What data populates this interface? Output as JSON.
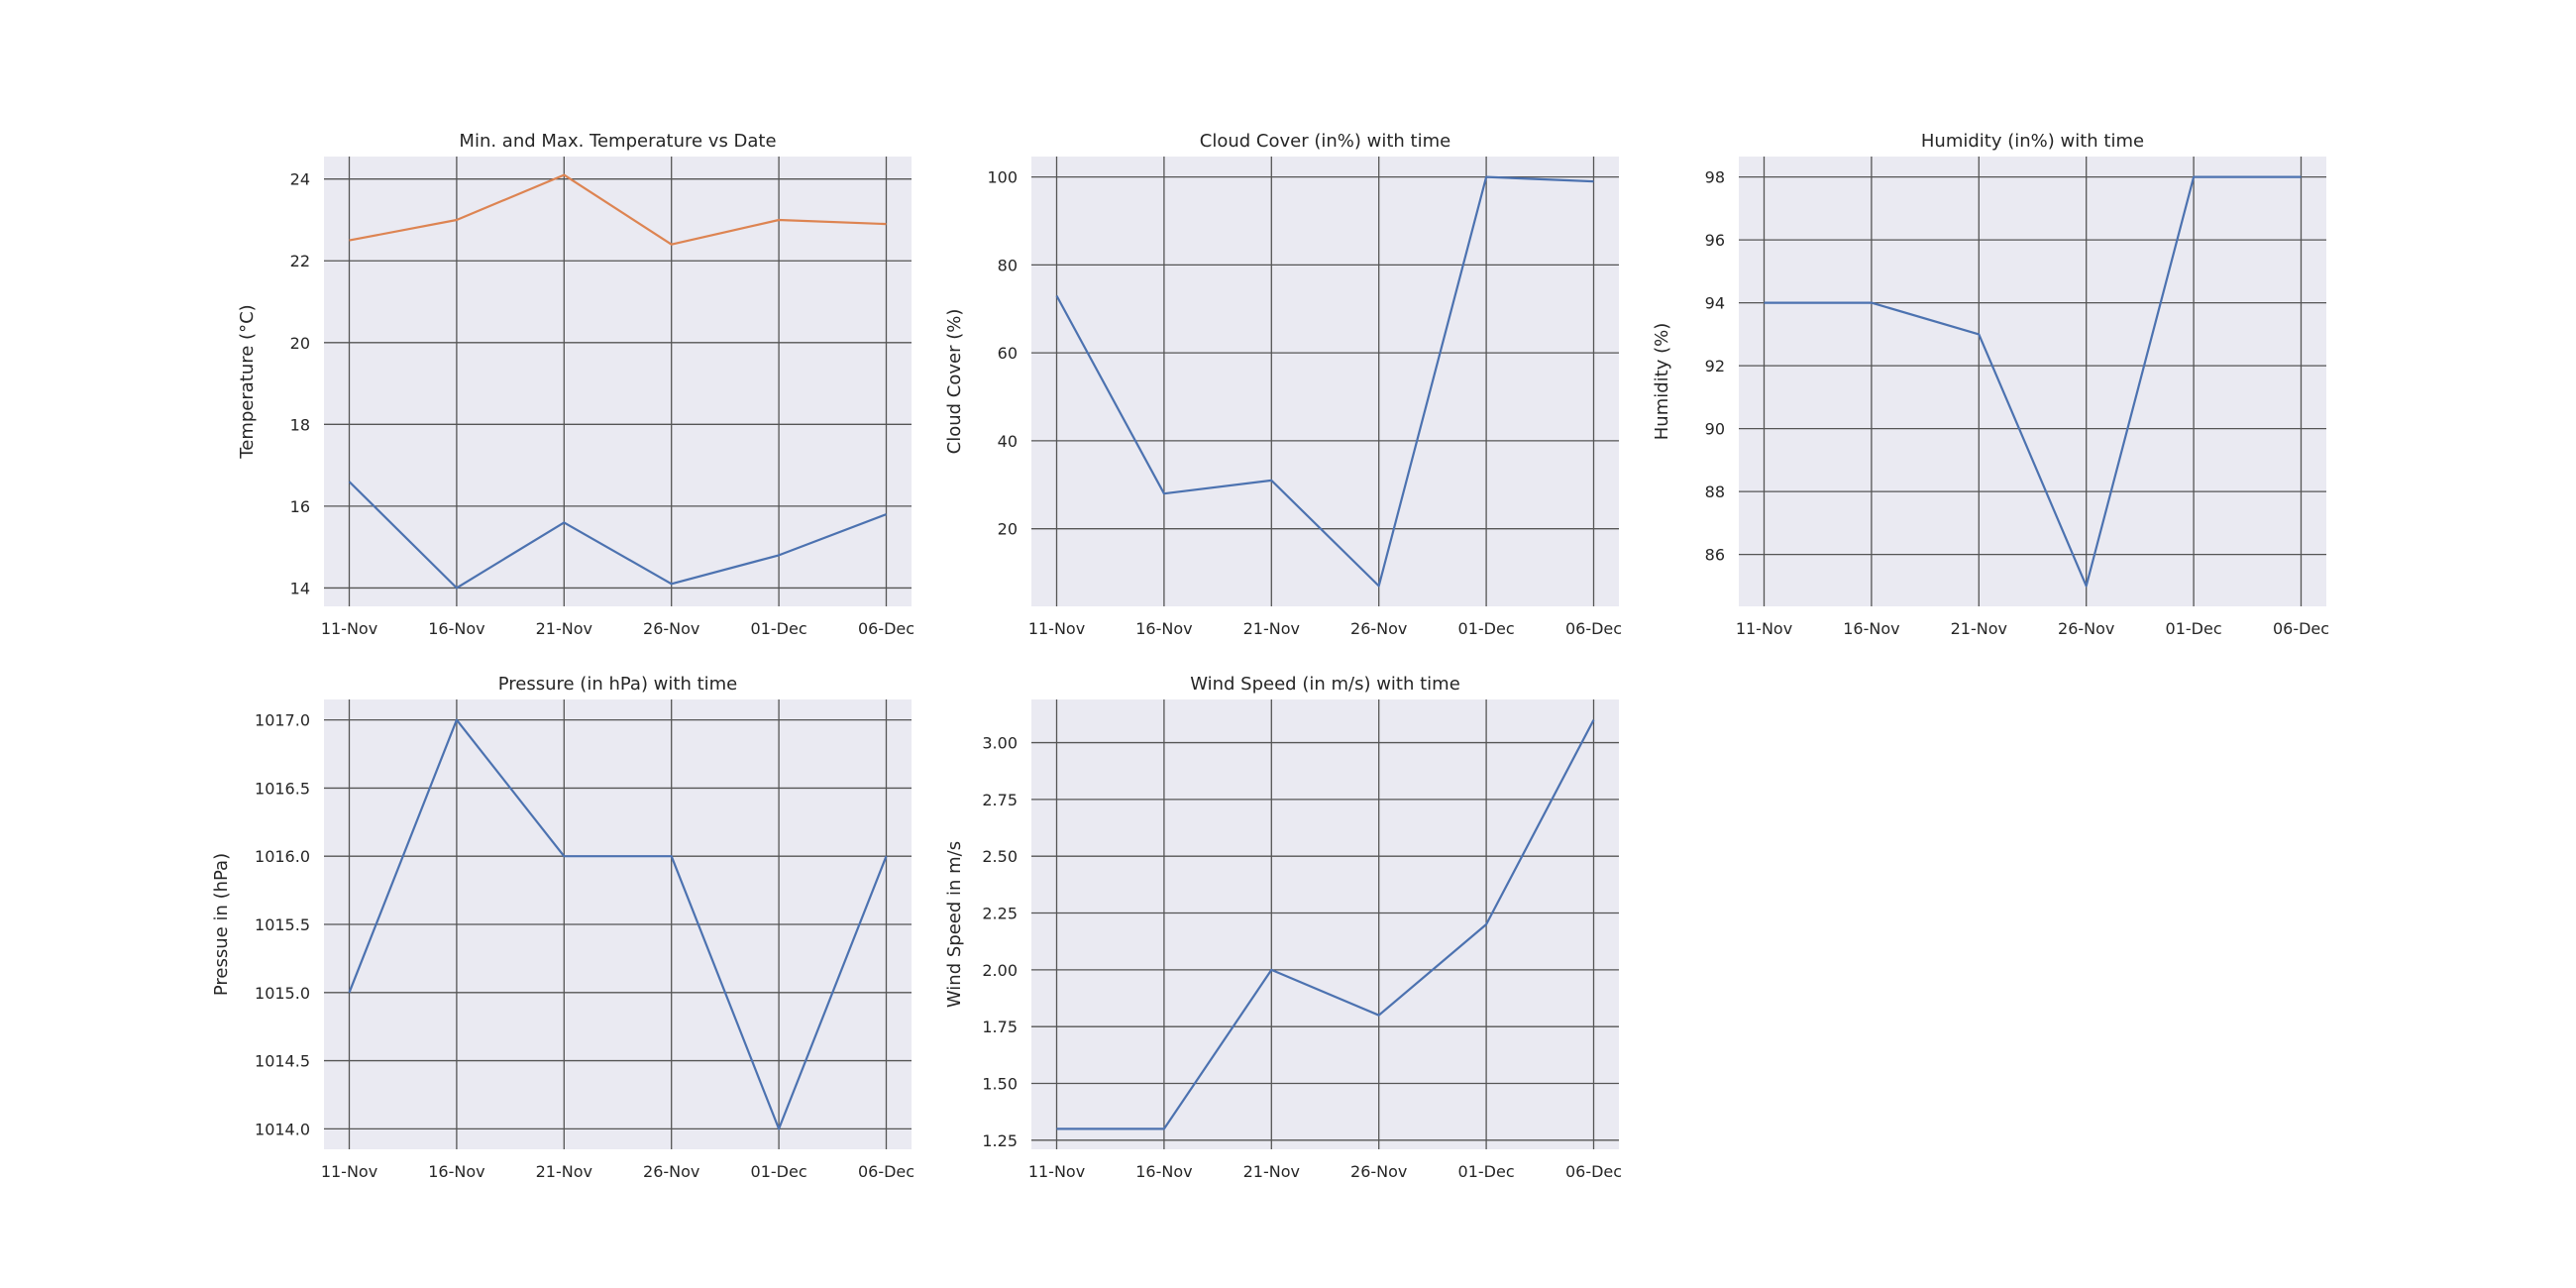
{
  "chart_data": [
    {
      "type": "line",
      "title": "Min. and Max. Temperature vs Date",
      "xlabel": "",
      "ylabel": "Temperature (°C)",
      "x": [
        "11-Nov",
        "16-Nov",
        "21-Nov",
        "26-Nov",
        "01-Dec",
        "06-Dec"
      ],
      "ylim": [
        13.55,
        24.55
      ],
      "yticks": [
        14,
        16,
        18,
        20,
        22,
        24
      ],
      "ytick_labels": [
        "14",
        "16",
        "18",
        "20",
        "22",
        "24"
      ],
      "grid": true,
      "series": [
        {
          "values": [
            16.6,
            14.0,
            15.6,
            14.1,
            14.8,
            15.8
          ],
          "color": "#4c72b0"
        },
        {
          "values": [
            22.5,
            23.0,
            24.1,
            22.4,
            23.0,
            22.9
          ],
          "color": "#dd8452"
        }
      ]
    },
    {
      "type": "line",
      "title": "Cloud Cover (in%) with time",
      "xlabel": "",
      "ylabel": "Cloud Cover (%)",
      "x": [
        "11-Nov",
        "16-Nov",
        "21-Nov",
        "26-Nov",
        "01-Dec",
        "06-Dec"
      ],
      "ylim": [
        2.35,
        104.65
      ],
      "yticks": [
        20,
        40,
        60,
        80,
        100
      ],
      "ytick_labels": [
        "20",
        "40",
        "60",
        "80",
        "100"
      ],
      "grid": true,
      "series": [
        {
          "values": [
            73,
            28,
            31,
            7,
            100,
            99
          ],
          "color": "#4c72b0"
        }
      ]
    },
    {
      "type": "line",
      "title": "Humidity (in%) with time",
      "xlabel": "",
      "ylabel": "Humidity (%)",
      "x": [
        "11-Nov",
        "16-Nov",
        "21-Nov",
        "26-Nov",
        "01-Dec",
        "06-Dec"
      ],
      "ylim": [
        84.35,
        98.65
      ],
      "yticks": [
        86,
        88,
        90,
        92,
        94,
        96,
        98
      ],
      "ytick_labels": [
        "86",
        "88",
        "90",
        "92",
        "94",
        "96",
        "98"
      ],
      "grid": true,
      "series": [
        {
          "values": [
            94,
            94,
            93,
            85,
            98,
            98
          ],
          "color": "#4c72b0"
        }
      ]
    },
    {
      "type": "line",
      "title": "Pressure (in hPa) with time",
      "xlabel": "",
      "ylabel": "Pressue in (hPa)",
      "x": [
        "11-Nov",
        "16-Nov",
        "21-Nov",
        "26-Nov",
        "01-Dec",
        "06-Dec"
      ],
      "ylim": [
        1013.85,
        1017.15
      ],
      "yticks": [
        1014.0,
        1014.5,
        1015.0,
        1015.5,
        1016.0,
        1016.5,
        1017.0
      ],
      "ytick_labels": [
        "1014.0",
        "1014.5",
        "1015.0",
        "1015.5",
        "1016.0",
        "1016.5",
        "1017.0"
      ],
      "grid": true,
      "series": [
        {
          "values": [
            1015,
            1017,
            1016,
            1016,
            1014,
            1016
          ],
          "color": "#4c72b0"
        }
      ]
    },
    {
      "type": "line",
      "title": "Wind Speed (in m/s) with time",
      "xlabel": "",
      "ylabel": "Wind Speed in m/s",
      "x": [
        "11-Nov",
        "16-Nov",
        "21-Nov",
        "26-Nov",
        "01-Dec",
        "06-Dec"
      ],
      "ylim": [
        1.21,
        3.19
      ],
      "yticks": [
        1.25,
        1.5,
        1.75,
        2.0,
        2.25,
        2.5,
        2.75,
        3.0
      ],
      "ytick_labels": [
        "1.25",
        "1.50",
        "1.75",
        "2.00",
        "2.25",
        "2.50",
        "2.75",
        "3.00"
      ],
      "grid": true,
      "series": [
        {
          "values": [
            1.3,
            1.3,
            2.0,
            1.8,
            2.2,
            3.1
          ],
          "color": "#4c72b0"
        }
      ]
    }
  ]
}
